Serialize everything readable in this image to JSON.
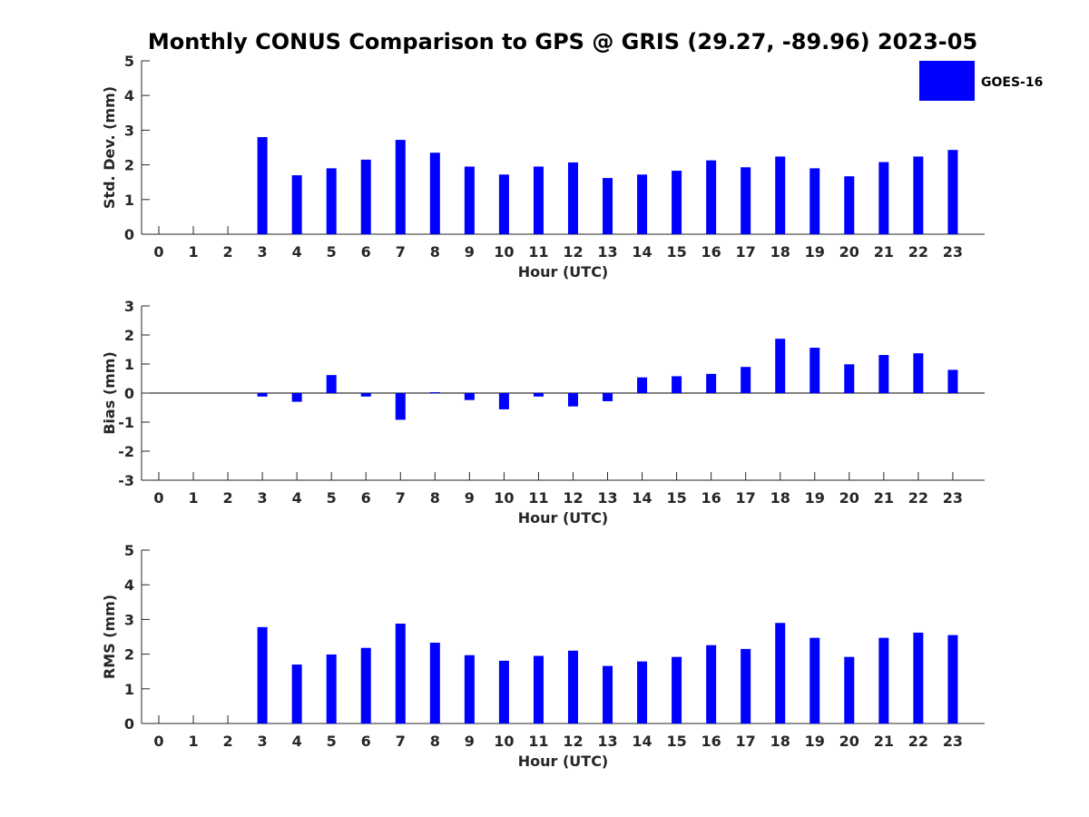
{
  "chart_data": {
    "title": "Monthly CONUS Comparison to GPS @ GRIS (29.27, -89.96) 2023-05",
    "type": "bar",
    "legend": {
      "entries": [
        "GOES-16"
      ],
      "placement": "top-right"
    },
    "colors": {
      "bar": "#0000ff",
      "axis": "#262626",
      "legend_border": "#ffffff"
    },
    "panels": [
      {
        "type": "bar",
        "xlabel": "Hour (UTC)",
        "ylabel": "Std. Dev. (mm)",
        "ylim": [
          0,
          5
        ],
        "yticks": [
          "0",
          "1",
          "2",
          "3",
          "4",
          "5"
        ],
        "categories": [
          "0",
          "1",
          "2",
          "3",
          "4",
          "5",
          "6",
          "7",
          "8",
          "9",
          "10",
          "11",
          "12",
          "13",
          "14",
          "15",
          "16",
          "17",
          "18",
          "19",
          "20",
          "21",
          "22",
          "23"
        ],
        "series": [
          {
            "name": "GOES-16",
            "values": [
              null,
              null,
              null,
              2.8,
              1.7,
              1.9,
              2.15,
              2.72,
              2.35,
              1.95,
              1.72,
              1.95,
              2.07,
              1.62,
              1.72,
              1.83,
              2.13,
              1.93,
              2.24,
              1.9,
              1.67,
              2.08,
              2.24,
              2.43
            ]
          }
        ]
      },
      {
        "type": "bar",
        "xlabel": "Hour (UTC)",
        "ylabel": "Bias (mm)",
        "ylim": [
          -3,
          3
        ],
        "yticks": [
          "-3",
          "-2",
          "-1",
          "0",
          "1",
          "2",
          "3"
        ],
        "categories": [
          "0",
          "1",
          "2",
          "3",
          "4",
          "5",
          "6",
          "7",
          "8",
          "9",
          "10",
          "11",
          "12",
          "13",
          "14",
          "15",
          "16",
          "17",
          "18",
          "19",
          "20",
          "21",
          "22",
          "23"
        ],
        "series": [
          {
            "name": "GOES-16",
            "values": [
              null,
              null,
              null,
              -0.12,
              -0.3,
              0.62,
              -0.12,
              -0.92,
              0.03,
              -0.24,
              -0.56,
              -0.12,
              -0.46,
              -0.28,
              0.54,
              0.58,
              0.66,
              0.9,
              1.87,
              1.56,
              0.99,
              1.31,
              1.37,
              0.8
            ]
          }
        ]
      },
      {
        "type": "bar",
        "xlabel": "Hour (UTC)",
        "ylabel": "RMS (mm)",
        "ylim": [
          0,
          5
        ],
        "yticks": [
          "0",
          "1",
          "2",
          "3",
          "4",
          "5"
        ],
        "categories": [
          "0",
          "1",
          "2",
          "3",
          "4",
          "5",
          "6",
          "7",
          "8",
          "9",
          "10",
          "11",
          "12",
          "13",
          "14",
          "15",
          "16",
          "17",
          "18",
          "19",
          "20",
          "21",
          "22",
          "23"
        ],
        "series": [
          {
            "name": "GOES-16",
            "values": [
              null,
              null,
              null,
              2.78,
              1.7,
              1.99,
              2.18,
              2.88,
              2.33,
              1.97,
              1.81,
              1.95,
              2.1,
              1.66,
              1.79,
              1.92,
              2.26,
              2.15,
              2.9,
              2.47,
              1.92,
              2.47,
              2.62,
              2.55
            ]
          }
        ]
      }
    ]
  }
}
